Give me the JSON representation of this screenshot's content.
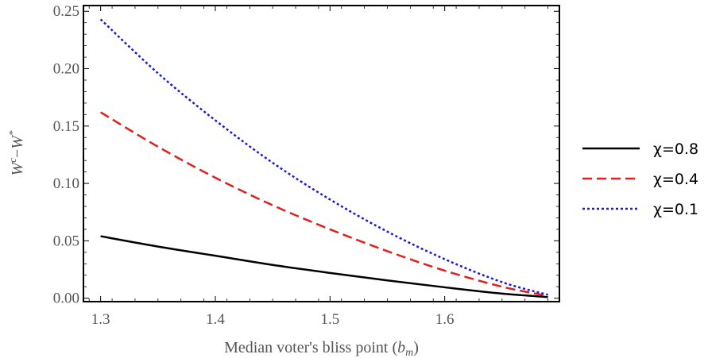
{
  "chart_data": {
    "type": "line",
    "title": "",
    "xlabel_prefix": "Median voter's bliss point (",
    "xlabel_var": "b",
    "xlabel_sub": "m",
    "xlabel_suffix": ")",
    "ylabel_main": "W",
    "ylabel_sup1": "c",
    "ylabel_minus": "−",
    "ylabel_main2": "W",
    "ylabel_sup2": "*",
    "xlim": [
      1.285,
      1.7
    ],
    "ylim": [
      -0.003,
      0.255
    ],
    "xticks": [
      1.3,
      1.4,
      1.5,
      1.6
    ],
    "xtick_labels": [
      "1.3",
      "1.4",
      "1.5",
      "1.6"
    ],
    "yticks": [
      0.0,
      0.05,
      0.1,
      0.15,
      0.2,
      0.25
    ],
    "ytick_labels": [
      "0.00",
      "0.05",
      "0.10",
      "0.15",
      "0.20",
      "0.25"
    ],
    "grid": false,
    "legend_position": "right",
    "series": [
      {
        "name": "χ=0.8",
        "color": "#000000",
        "dash": "solid",
        "x": [
          1.3,
          1.35,
          1.4,
          1.45,
          1.5,
          1.55,
          1.6,
          1.65,
          1.69
        ],
        "y": [
          0.054,
          0.045,
          0.037,
          0.029,
          0.022,
          0.0155,
          0.0095,
          0.004,
          0.001
        ]
      },
      {
        "name": "χ=0.4",
        "color": "#e0201b",
        "dash": "dashed",
        "x": [
          1.3,
          1.35,
          1.4,
          1.45,
          1.5,
          1.55,
          1.6,
          1.65,
          1.69
        ],
        "y": [
          0.162,
          0.132,
          0.105,
          0.081,
          0.06,
          0.041,
          0.024,
          0.01,
          0.002
        ]
      },
      {
        "name": "χ=0.1",
        "color": "#1a1ad6",
        "dash": "dotted",
        "x": [
          1.3,
          1.35,
          1.4,
          1.45,
          1.5,
          1.55,
          1.6,
          1.65,
          1.69
        ],
        "y": [
          0.243,
          0.196,
          0.155,
          0.118,
          0.086,
          0.058,
          0.034,
          0.014,
          0.003
        ]
      }
    ]
  }
}
